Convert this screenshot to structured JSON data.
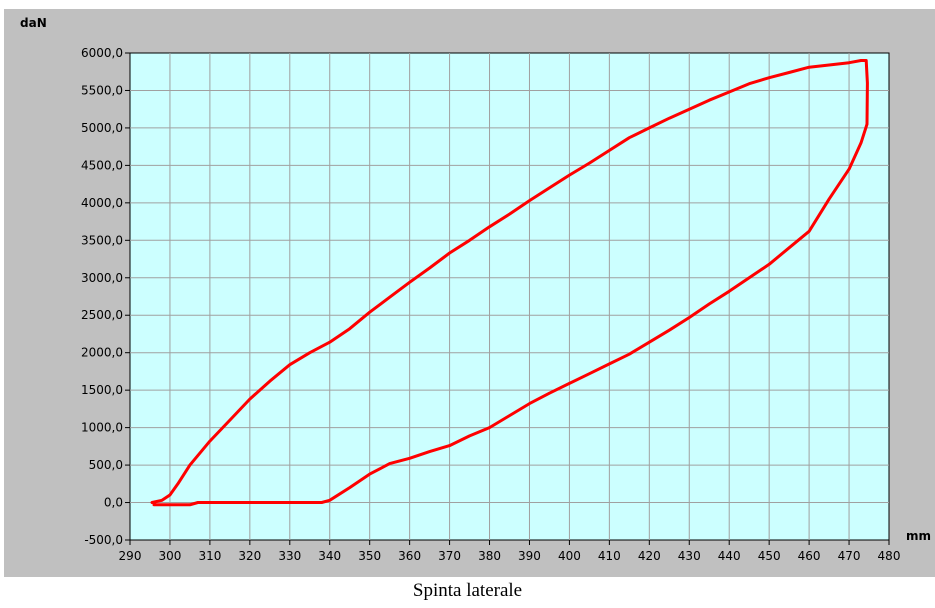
{
  "chart_data": {
    "type": "line",
    "title": "Spinta laterale",
    "xlabel": "mm",
    "ylabel": "daN",
    "xlim": [
      290,
      480
    ],
    "ylim": [
      -500,
      6000
    ],
    "x_ticks": [
      "290",
      "300",
      "310",
      "320",
      "330",
      "340",
      "350",
      "360",
      "370",
      "380",
      "390",
      "400",
      "410",
      "420",
      "430",
      "440",
      "450",
      "460",
      "470",
      "480"
    ],
    "y_ticks": [
      "-500,0",
      "0,0",
      "500,0",
      "1000,0",
      "1500,0",
      "2000,0",
      "2500,0",
      "3000,0",
      "3500,0",
      "4000,0",
      "4500,0",
      "5000,0",
      "5500,0",
      "6000,0"
    ],
    "grid": true,
    "colors": {
      "plot_bg": "#ccffff",
      "grid": "#a0a0a0",
      "series": "#ff0000",
      "panel": "#c0c0c0"
    },
    "series": [
      {
        "x": [
          295.5,
          298,
          300,
          302,
          305,
          310,
          315,
          320,
          325,
          330,
          335,
          340,
          345,
          350,
          355,
          360,
          365,
          370,
          375,
          380,
          385,
          390,
          395,
          400,
          405,
          410,
          415,
          420,
          425,
          430,
          435,
          440,
          445,
          450,
          455,
          460,
          465,
          470,
          473,
          474.3,
          474.6,
          474.5,
          473,
          470,
          465,
          460,
          455,
          450,
          445,
          440,
          435,
          430,
          425,
          420,
          415,
          410,
          405,
          400,
          395,
          390,
          385,
          380,
          375,
          370,
          365,
          360,
          355,
          350,
          345,
          340,
          338,
          330,
          320,
          310,
          307,
          305,
          300,
          298,
          296
        ],
        "y": [
          0,
          30,
          100,
          250,
          500,
          820,
          1100,
          1380,
          1620,
          1840,
          2000,
          2140,
          2320,
          2540,
          2740,
          2940,
          3130,
          3330,
          3500,
          3680,
          3850,
          4030,
          4200,
          4370,
          4530,
          4700,
          4870,
          5000,
          5130,
          5250,
          5370,
          5480,
          5590,
          5670,
          5740,
          5810,
          5840,
          5870,
          5900,
          5900,
          5600,
          5050,
          4800,
          4450,
          4050,
          3620,
          3400,
          3180,
          3000,
          2820,
          2650,
          2470,
          2300,
          2140,
          1980,
          1850,
          1720,
          1590,
          1460,
          1320,
          1160,
          1000,
          890,
          760,
          680,
          590,
          520,
          380,
          200,
          30,
          0,
          0,
          0,
          0,
          0,
          -30,
          -30,
          -30,
          -30
        ]
      }
    ]
  }
}
